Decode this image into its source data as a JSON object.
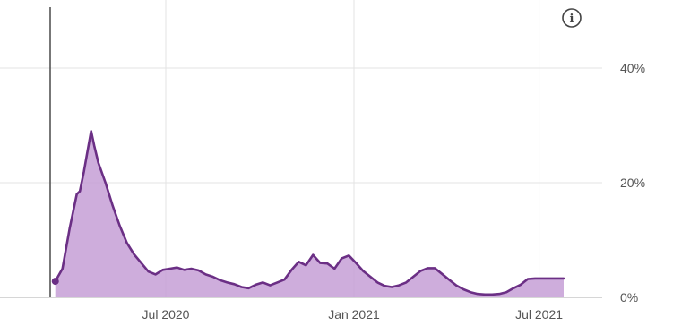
{
  "chart_data": {
    "type": "area",
    "title": "",
    "xlabel": "",
    "ylabel": "",
    "ylim": [
      0,
      50
    ],
    "x_ticks": [
      {
        "date": "2020-07-01",
        "label": "Jul 2020"
      },
      {
        "date": "2021-01-01",
        "label": "Jan 2021"
      },
      {
        "date": "2021-07-01",
        "label": "Jul 2021"
      }
    ],
    "y_ticks": [
      {
        "value": 0,
        "label": "0%"
      },
      {
        "value": 20,
        "label": "20%"
      },
      {
        "value": 40,
        "label": "40%"
      }
    ],
    "grid": true,
    "y_axis_side": "right",
    "line_color": "#6b2f85",
    "fill_color": "#c59fd6",
    "info_icon": "info-icon",
    "info_glyph": "i",
    "series": [
      {
        "x": [
          "2020-03-15",
          "2020-03-22",
          "2020-03-29",
          "2020-04-05",
          "2020-04-08",
          "2020-04-12",
          "2020-04-15",
          "2020-04-19",
          "2020-04-22",
          "2020-04-26",
          "2020-05-03",
          "2020-05-10",
          "2020-05-17",
          "2020-05-24",
          "2020-05-31",
          "2020-06-07",
          "2020-06-14",
          "2020-06-21",
          "2020-06-28",
          "2020-07-05",
          "2020-07-12",
          "2020-07-19",
          "2020-07-26",
          "2020-08-02",
          "2020-08-09",
          "2020-08-16",
          "2020-08-23",
          "2020-08-30",
          "2020-09-06",
          "2020-09-13",
          "2020-09-20",
          "2020-09-27",
          "2020-10-04",
          "2020-10-11",
          "2020-10-18",
          "2020-10-25",
          "2020-11-01",
          "2020-11-08",
          "2020-11-15",
          "2020-11-22",
          "2020-11-29",
          "2020-12-06",
          "2020-12-13",
          "2020-12-20",
          "2020-12-27",
          "2021-01-03",
          "2021-01-10",
          "2021-01-17",
          "2021-01-24",
          "2021-01-31",
          "2021-02-07",
          "2021-02-14",
          "2021-02-21",
          "2021-02-28",
          "2021-03-07",
          "2021-03-14",
          "2021-03-21",
          "2021-03-28",
          "2021-04-04",
          "2021-04-11",
          "2021-04-18",
          "2021-04-25",
          "2021-05-02",
          "2021-05-09",
          "2021-05-16",
          "2021-05-23",
          "2021-05-30",
          "2021-06-06",
          "2021-06-13",
          "2021-06-20",
          "2021-06-27",
          "2021-07-04",
          "2021-07-11",
          "2021-07-18",
          "2021-07-25"
        ],
        "values": [
          2.8,
          5,
          12,
          18,
          18.5,
          22,
          25,
          29,
          26.5,
          23.5,
          20,
          16,
          12.5,
          9.5,
          7.5,
          6,
          4.5,
          4,
          4.8,
          5,
          5.2,
          4.8,
          5,
          4.7,
          4,
          3.6,
          3,
          2.6,
          2.3,
          1.8,
          1.6,
          2.2,
          2.6,
          2.1,
          2.6,
          3.1,
          4.8,
          6.2,
          5.6,
          7.4,
          6,
          5.9,
          5,
          6.8,
          7.3,
          6,
          4.6,
          3.6,
          2.6,
          2,
          1.8,
          2.1,
          2.6,
          3.6,
          4.6,
          5.1,
          5.1,
          4.1,
          3.1,
          2.1,
          1.4,
          0.9,
          0.6,
          0.5,
          0.5,
          0.6,
          0.9,
          1.6,
          2.2,
          3.2,
          3.3,
          3.3,
          3.3,
          3.3,
          3.3
        ]
      }
    ]
  }
}
